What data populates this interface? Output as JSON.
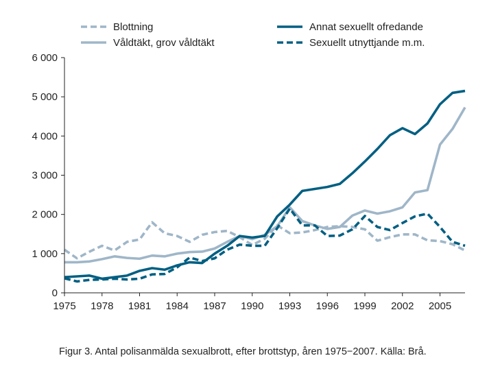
{
  "chart_data": {
    "type": "line",
    "x": [
      1975,
      1976,
      1977,
      1978,
      1979,
      1980,
      1981,
      1982,
      1983,
      1984,
      1985,
      1986,
      1987,
      1988,
      1989,
      1990,
      1991,
      1992,
      1993,
      1994,
      1995,
      1996,
      1997,
      1998,
      1999,
      2000,
      2001,
      2002,
      2003,
      2004,
      2005,
      2006,
      2007
    ],
    "xticks": [
      1975,
      1978,
      1981,
      1984,
      1987,
      1990,
      1993,
      1996,
      1999,
      2002,
      2005
    ],
    "xlim": [
      1975,
      2007
    ],
    "yticks": [
      0,
      1000,
      2000,
      3000,
      4000,
      5000,
      6000
    ],
    "ytick_labels": [
      "0",
      "1 000",
      "2 000",
      "3 000",
      "4 000",
      "5 000",
      "6 000"
    ],
    "ylim": [
      0,
      6000
    ],
    "grid": false,
    "legend_placement": "top",
    "series": [
      {
        "name": "Blottning",
        "color": "#9fb6c8",
        "style": "dashed",
        "values": [
          1100,
          880,
          1050,
          1200,
          1080,
          1300,
          1360,
          1800,
          1520,
          1450,
          1300,
          1480,
          1550,
          1580,
          1420,
          1220,
          1380,
          1720,
          1520,
          1540,
          1600,
          1680,
          1700,
          1680,
          1620,
          1330,
          1420,
          1490,
          1490,
          1340,
          1320,
          1240,
          1080
        ]
      },
      {
        "name": "Annat sexuellt ofredande",
        "color": "#005f82",
        "style": "solid",
        "values": [
          400,
          420,
          440,
          360,
          400,
          440,
          560,
          630,
          590,
          700,
          780,
          760,
          1000,
          1200,
          1450,
          1410,
          1450,
          1950,
          2250,
          2600,
          2650,
          2700,
          2780,
          3050,
          3350,
          3670,
          4020,
          4200,
          4050,
          4320,
          4810,
          5100,
          5150
        ]
      },
      {
        "name": "Våldtäkt, grov våldtäkt",
        "color": "#9fb6c8",
        "style": "solid",
        "values": [
          780,
          780,
          800,
          860,
          930,
          890,
          870,
          950,
          930,
          1000,
          1040,
          1050,
          1130,
          1300,
          1450,
          1370,
          1480,
          1700,
          2180,
          1830,
          1720,
          1630,
          1680,
          1970,
          2100,
          2020,
          2080,
          2180,
          2560,
          2620,
          3780,
          4180,
          4730
        ]
      },
      {
        "name": "Sexuellt utnyttjande m.m.",
        "color": "#005f82",
        "style": "dashed",
        "values": [
          370,
          290,
          330,
          340,
          360,
          340,
          360,
          470,
          480,
          650,
          900,
          810,
          880,
          1100,
          1230,
          1200,
          1200,
          1650,
          2150,
          1720,
          1720,
          1450,
          1460,
          1620,
          1960,
          1680,
          1600,
          1780,
          1950,
          2020,
          1680,
          1300,
          1200
        ]
      }
    ],
    "caption": "Figur 3. Antal polisanmälda sexualbrott, efter brottstyp, åren 1975−2007. Källa: Brå."
  }
}
